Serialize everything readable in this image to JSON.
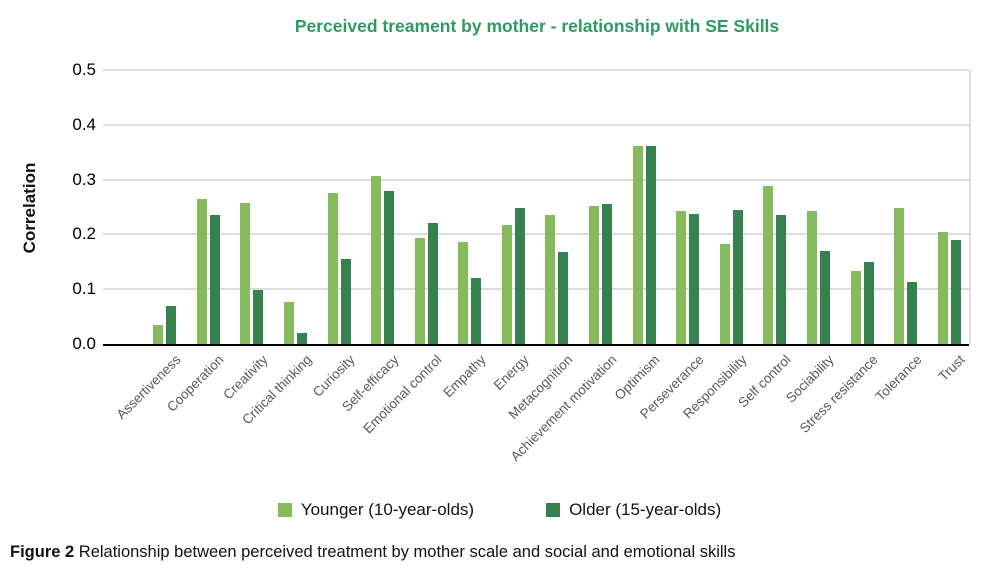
{
  "title": "Perceived treament by mother - relationship with SE Skills",
  "caption": {
    "label": "Figure 2",
    "text": " Relationship between perceived treatment by mother scale and social and emotional skills"
  },
  "colors": {
    "title_green": "#2e9a63",
    "younger_green": "#85bb5c",
    "older_green": "#35824f",
    "gridline": "#dcdcdc",
    "axis": "#000000",
    "x_label": "#595959"
  },
  "chart_data": {
    "type": "bar",
    "title": "Perceived treament by mother - relationship with SE Skills",
    "xlabel": "",
    "ylabel": "Correlation",
    "ylim": [
      0,
      0.5
    ],
    "ytick_labels": [
      "0.0",
      "0.1",
      "0.2",
      "0.3",
      "0.4",
      "0.5"
    ],
    "grid": true,
    "legend_position": "bottom",
    "categories": [
      "Assertiveness",
      "Cooperation",
      "Creativity",
      "Critical thinking",
      "Curiosity",
      "Self-efficacy",
      "Emotional control",
      "Empathy",
      "Energy",
      "Metacognition",
      "Achievement motivation",
      "Optimism",
      "Perseverance",
      "Responsibility",
      "Self control",
      "Sociability",
      "Stress resistance",
      "Tolerance",
      "Trust"
    ],
    "series": [
      {
        "name": "Younger (10-year-olds)",
        "color": "#85bb5c",
        "values": [
          0.035,
          0.265,
          0.257,
          0.076,
          0.276,
          0.307,
          0.193,
          0.186,
          0.217,
          0.236,
          0.252,
          0.362,
          0.242,
          0.183,
          0.289,
          0.242,
          0.133,
          0.248,
          0.205
        ]
      },
      {
        "name": "Older (15-year-olds)",
        "color": "#35824f",
        "values": [
          0.07,
          0.235,
          0.098,
          0.02,
          0.155,
          0.279,
          0.221,
          0.12,
          0.248,
          0.167,
          0.256,
          0.362,
          0.238,
          0.245,
          0.236,
          0.17,
          0.149,
          0.113,
          0.19
        ]
      }
    ]
  }
}
